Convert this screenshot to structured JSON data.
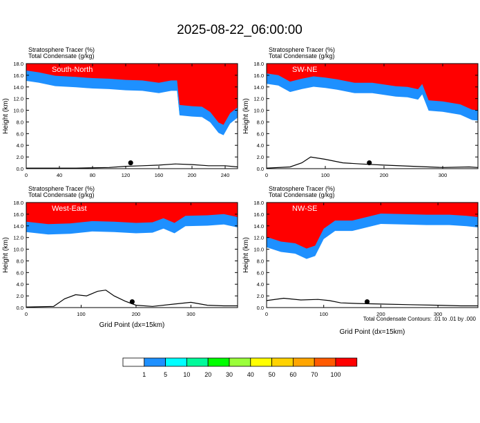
{
  "title": "2025-08-22_06:00:00",
  "chart_data": {
    "type": "heatmap",
    "panels": [
      {
        "name": "South-North",
        "label": "South-North",
        "header_line1": "Stratosphere Tracer   (%)",
        "header_line2": "Total Condensate   (g/kg)",
        "ylabel": "Height (km)",
        "xlabel": "",
        "xlim": [
          0,
          255
        ],
        "ylim": [
          0,
          18
        ],
        "xticks": [
          "0",
          "40",
          "80",
          "120",
          "160",
          "200",
          "240"
        ],
        "xtick_values": [
          0,
          40,
          80,
          120,
          160,
          200,
          240
        ],
        "yticks": [
          "0.0",
          "2.0",
          "4.0",
          "6.0",
          "8.0",
          "10.0",
          "12.0",
          "14.0",
          "16.0",
          "18.0"
        ],
        "ytick_values": [
          0,
          2,
          4,
          6,
          8,
          10,
          12,
          14,
          16,
          18
        ],
        "tracer_base": [
          [
            0,
            16.1
          ],
          [
            15,
            15.8
          ],
          [
            35,
            15.2
          ],
          [
            60,
            15.0
          ],
          [
            80,
            14.8
          ],
          [
            100,
            14.7
          ],
          [
            120,
            14.5
          ],
          [
            140,
            14.4
          ],
          [
            160,
            14.0
          ],
          [
            175,
            14.4
          ],
          [
            182,
            14.4
          ],
          [
            185,
            10.2
          ],
          [
            200,
            10.0
          ],
          [
            212,
            9.9
          ],
          [
            222,
            9.0
          ],
          [
            232,
            7.2
          ],
          [
            238,
            6.8
          ],
          [
            246,
            8.8
          ],
          [
            255,
            9.8
          ]
        ],
        "terrain": [
          [
            0,
            0.1
          ],
          [
            60,
            0.1
          ],
          [
            100,
            0.2
          ],
          [
            120,
            0.4
          ],
          [
            140,
            0.5
          ],
          [
            160,
            0.6
          ],
          [
            180,
            0.8
          ],
          [
            200,
            0.7
          ],
          [
            220,
            0.5
          ],
          [
            240,
            0.5
          ],
          [
            255,
            0.3
          ]
        ],
        "marker": [
          126,
          1.0
        ]
      },
      {
        "name": "SW-NE",
        "label": "SW-NE",
        "header_line1": "Stratosphere Tracer   (%)",
        "header_line2": "Total Condensate   (g/kg)",
        "ylabel": "Height (km)",
        "xlabel": "",
        "xlim": [
          0,
          360
        ],
        "ylim": [
          0,
          18
        ],
        "xticks": [
          "0",
          "100",
          "200",
          "300"
        ],
        "xtick_values": [
          0,
          100,
          200,
          300
        ],
        "yticks": [
          "0.0",
          "2.0",
          "4.0",
          "6.0",
          "8.0",
          "10.0",
          "12.0",
          "14.0",
          "16.0",
          "18.0"
        ],
        "ytick_values": [
          0,
          2,
          4,
          6,
          8,
          10,
          12,
          14,
          16,
          18
        ],
        "tracer_base": [
          [
            0,
            15.6
          ],
          [
            20,
            15.3
          ],
          [
            40,
            14.2
          ],
          [
            60,
            14.7
          ],
          [
            80,
            15.1
          ],
          [
            100,
            14.9
          ],
          [
            120,
            14.6
          ],
          [
            150,
            14.0
          ],
          [
            180,
            14.0
          ],
          [
            200,
            13.7
          ],
          [
            220,
            13.4
          ],
          [
            240,
            13.3
          ],
          [
            258,
            12.9
          ],
          [
            265,
            13.8
          ],
          [
            276,
            11.0
          ],
          [
            300,
            10.8
          ],
          [
            330,
            10.3
          ],
          [
            350,
            9.4
          ],
          [
            360,
            9.3
          ]
        ],
        "terrain": [
          [
            0,
            0.1
          ],
          [
            40,
            0.3
          ],
          [
            60,
            1.0
          ],
          [
            75,
            2.0
          ],
          [
            100,
            1.6
          ],
          [
            130,
            1.0
          ],
          [
            160,
            0.8
          ],
          [
            200,
            0.6
          ],
          [
            250,
            0.4
          ],
          [
            300,
            0.2
          ],
          [
            345,
            0.3
          ],
          [
            360,
            0.2
          ]
        ],
        "marker": [
          175,
          1.0
        ]
      },
      {
        "name": "West-East",
        "label": "West-East",
        "header_line1": "Stratosphere Tracer   (%)",
        "header_line2": "Total Condensate   (g/kg)",
        "ylabel": "Height (km)",
        "xlabel": "Grid Point (dx=15km)",
        "xlim": [
          0,
          385
        ],
        "ylim": [
          0,
          18
        ],
        "xticks": [
          "0",
          "100",
          "200",
          "300"
        ],
        "xtick_values": [
          0,
          100,
          200,
          300
        ],
        "yticks": [
          "0.0",
          "2.0",
          "4.0",
          "6.0",
          "8.0",
          "10.0",
          "12.0",
          "14.0",
          "16.0",
          "18.0"
        ],
        "ytick_values": [
          0,
          2,
          4,
          6,
          8,
          10,
          12,
          14,
          16,
          18
        ],
        "tracer_base": [
          [
            0,
            14.0
          ],
          [
            40,
            13.6
          ],
          [
            80,
            13.7
          ],
          [
            120,
            14.1
          ],
          [
            160,
            14.0
          ],
          [
            200,
            13.8
          ],
          [
            230,
            13.9
          ],
          [
            250,
            14.6
          ],
          [
            270,
            13.8
          ],
          [
            290,
            15.0
          ],
          [
            330,
            15.1
          ],
          [
            360,
            15.3
          ],
          [
            385,
            14.8
          ]
        ],
        "terrain": [
          [
            0,
            0.1
          ],
          [
            50,
            0.2
          ],
          [
            70,
            1.5
          ],
          [
            90,
            2.2
          ],
          [
            110,
            2.0
          ],
          [
            130,
            2.8
          ],
          [
            145,
            3.0
          ],
          [
            160,
            2.0
          ],
          [
            180,
            1.1
          ],
          [
            200,
            0.4
          ],
          [
            230,
            0.2
          ],
          [
            270,
            0.6
          ],
          [
            300,
            0.9
          ],
          [
            330,
            0.4
          ],
          [
            360,
            0.3
          ],
          [
            385,
            0.3
          ]
        ],
        "marker": [
          193,
          1.0
        ]
      },
      {
        "name": "NW-SE",
        "label": "NW-SE",
        "header_line1": "Stratosphere Tracer   (%)",
        "header_line2": "Total Condensate   (g/kg)",
        "ylabel": "Height (km)",
        "xlabel": "Grid Point (dx=15km)",
        "xlim": [
          0,
          370
        ],
        "ylim": [
          0,
          18
        ],
        "xticks": [
          "0",
          "100",
          "200",
          "300"
        ],
        "xtick_values": [
          0,
          100,
          200,
          300
        ],
        "yticks": [
          "0.0",
          "2.0",
          "4.0",
          "6.0",
          "8.0",
          "10.0",
          "12.0",
          "14.0",
          "16.0",
          "18.0"
        ],
        "ytick_values": [
          0,
          2,
          4,
          6,
          8,
          10,
          12,
          14,
          16,
          18
        ],
        "tracer_base": [
          [
            0,
            11.4
          ],
          [
            25,
            10.6
          ],
          [
            50,
            10.3
          ],
          [
            70,
            9.4
          ],
          [
            85,
            9.9
          ],
          [
            100,
            12.8
          ],
          [
            120,
            14.2
          ],
          [
            150,
            14.2
          ],
          [
            200,
            15.4
          ],
          [
            240,
            15.3
          ],
          [
            280,
            15.2
          ],
          [
            320,
            15.2
          ],
          [
            350,
            15.0
          ],
          [
            370,
            14.8
          ]
        ],
        "terrain": [
          [
            0,
            1.2
          ],
          [
            30,
            1.6
          ],
          [
            60,
            1.3
          ],
          [
            90,
            1.4
          ],
          [
            110,
            1.2
          ],
          [
            130,
            0.8
          ],
          [
            160,
            0.7
          ],
          [
            200,
            0.6
          ],
          [
            250,
            0.5
          ],
          [
            300,
            0.4
          ],
          [
            340,
            0.3
          ],
          [
            370,
            0.3
          ]
        ],
        "marker": [
          176,
          1.0
        ],
        "footnote": "Total Condensate Contours: .01 to .01 by .000"
      }
    ],
    "colorbar": {
      "labels": [
        "1",
        "5",
        "10",
        "20",
        "30",
        "40",
        "50",
        "60",
        "70",
        "100"
      ],
      "colors": [
        "#ffffff",
        "#1e90ff",
        "#00ffff",
        "#00fa9a",
        "#00ff00",
        "#9aff3a",
        "#ffff00",
        "#ffd200",
        "#ffa500",
        "#ff5a00",
        "#ff0000"
      ]
    }
  }
}
